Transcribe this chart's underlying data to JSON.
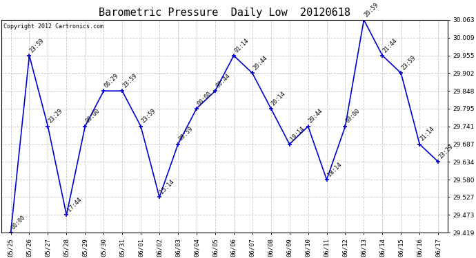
{
  "title": "Barometric Pressure  Daily Low  20120618",
  "copyright": "Copyright 2012 Cartronics.com",
  "x_labels": [
    "05/25",
    "05/26",
    "05/27",
    "05/28",
    "05/29",
    "05/30",
    "05/31",
    "06/01",
    "06/02",
    "06/03",
    "06/04",
    "06/05",
    "06/06",
    "06/07",
    "06/08",
    "06/09",
    "06/10",
    "06/11",
    "06/12",
    "06/13",
    "06/14",
    "06/15",
    "06/16",
    "06/17"
  ],
  "y_values": [
    29.419,
    29.955,
    29.741,
    29.473,
    29.741,
    29.848,
    29.848,
    29.741,
    29.527,
    29.687,
    29.795,
    29.848,
    29.955,
    29.902,
    29.795,
    29.687,
    29.741,
    29.58,
    29.741,
    30.063,
    29.955,
    29.902,
    29.687,
    29.634
  ],
  "point_labels": [
    "00:00",
    "23:59",
    "23:29",
    "17:44",
    "00:00",
    "06:29",
    "23:59",
    "23:59",
    "15:14",
    "00:59",
    "00:00",
    "00:44",
    "01:14",
    "20:44",
    "20:14",
    "19:14",
    "20:44",
    "18:14",
    "00:00",
    "20:59",
    "21:44",
    "23:59",
    "21:14",
    "23:29"
  ],
  "line_color": "#0000cc",
  "marker_color": "#0000cc",
  "bg_color": "#ffffff",
  "grid_color": "#c8c8c8",
  "ylim": [
    29.419,
    30.063
  ],
  "yticks": [
    29.419,
    29.473,
    29.527,
    29.58,
    29.634,
    29.687,
    29.741,
    29.795,
    29.848,
    29.902,
    29.955,
    30.009,
    30.063
  ],
  "title_fontsize": 11,
  "label_fontsize": 6.5,
  "annotation_fontsize": 6,
  "copyright_fontsize": 6
}
